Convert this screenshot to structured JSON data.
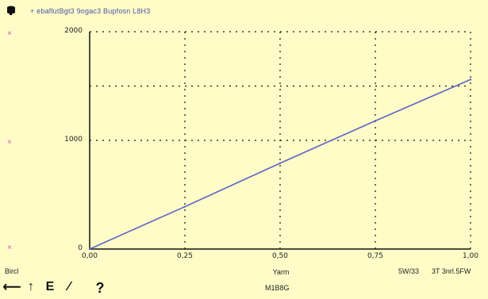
{
  "app": {
    "icon": "chart-window-icon",
    "series_label": "+ ebaflutBgt3 9ogac3 Bupfosn L8H3"
  },
  "side_markers": [
    "×",
    "×",
    "×"
  ],
  "status": {
    "left_text": "Bircl",
    "axis_title": "Yarm",
    "right_text_1": "5W/33",
    "right_text_2": "3T 3nrl.5FW",
    "bottom_label": "M1B8G"
  },
  "toolbar": {
    "tools": [
      {
        "name": "select-tool-icon",
        "glyph": "⟵"
      },
      {
        "name": "pan-tool-icon",
        "glyph": "↑"
      },
      {
        "name": "zoom-tool-icon",
        "glyph": "E"
      },
      {
        "name": "draw-tool-icon",
        "glyph": "∕"
      }
    ],
    "help_label": "?"
  },
  "chart_data": {
    "type": "line",
    "title": "",
    "xlabel": "Yarm",
    "ylabel": "",
    "xlim": [
      0,
      1
    ],
    "ylim": [
      0,
      2000
    ],
    "x_ticks": [
      0,
      0.25,
      0.5,
      0.75,
      1.0
    ],
    "x_tick_labels": [
      "0,00",
      "0,25",
      "0,50",
      "0,75",
      "1,00"
    ],
    "y_ticks": [
      0,
      1000,
      2000
    ],
    "y_tick_labels": [
      "0",
      "1000",
      "2000"
    ],
    "extra_grid_y": [
      1500
    ],
    "grid": true,
    "series": [
      {
        "name": "+ ebaflutBgt3 9ogac3 Bupfosn L8H3",
        "color": "#5a63c8",
        "x": [
          0,
          0.25,
          0.5,
          0.75,
          1.0
        ],
        "y": [
          0,
          390,
          790,
          1180,
          1560
        ]
      }
    ]
  },
  "colors": {
    "background": "#fffcc7",
    "line": "#5a63c8",
    "grid": "#111111",
    "marker": "#e04ec9"
  }
}
